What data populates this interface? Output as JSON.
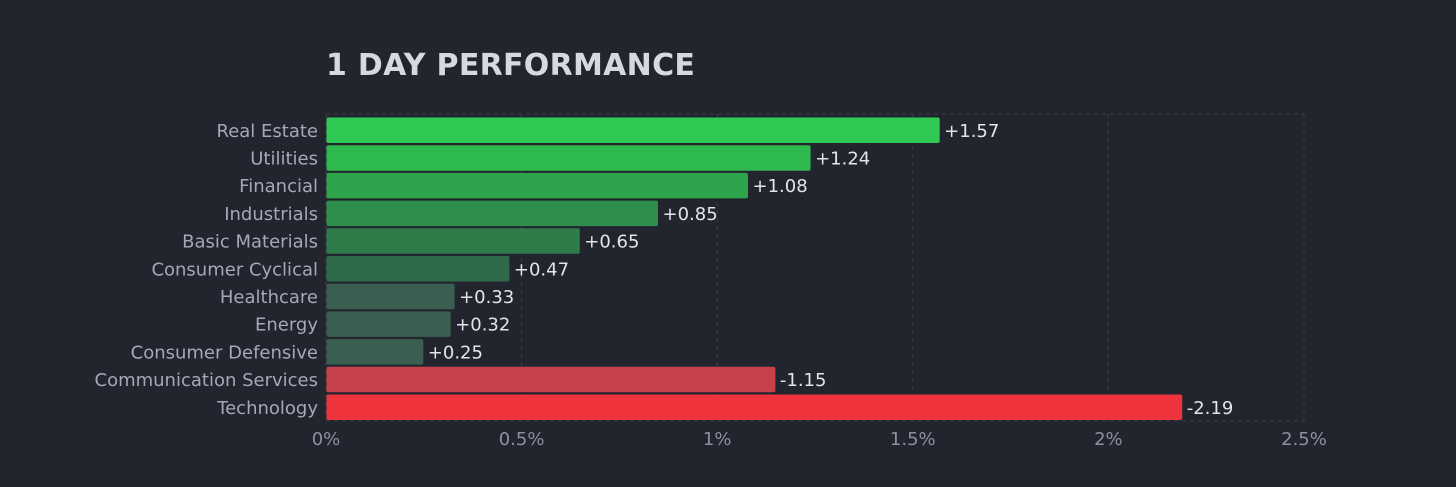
{
  "chart_data": {
    "type": "bar",
    "orientation": "horizontal",
    "title": "1 DAY PERFORMANCE",
    "categories": [
      "Real Estate",
      "Utilities",
      "Financial",
      "Industrials",
      "Basic Materials",
      "Consumer Cyclical",
      "Healthcare",
      "Energy",
      "Consumer Defensive",
      "Communication Services",
      "Technology"
    ],
    "values": [
      1.57,
      1.24,
      1.08,
      0.85,
      0.65,
      0.47,
      0.33,
      0.32,
      0.25,
      -1.15,
      -2.19
    ],
    "value_labels": [
      "+1.57",
      "+1.24",
      "+1.08",
      "+0.85",
      "+0.65",
      "+0.47",
      "+0.33",
      "+0.32",
      "+0.25",
      "-1.15",
      "-2.19"
    ],
    "bar_colors": [
      "#30c953",
      "#2eb94e",
      "#2ea44c",
      "#2e8e4b",
      "#2e7c49",
      "#2f6a4a",
      "#3a5f50",
      "#3a5f50",
      "#3a5f50",
      "#c7414a",
      "#f0343d"
    ],
    "bar_magnitude": "absolute value",
    "xlim": [
      0,
      2.5
    ],
    "xticks": [
      "0%",
      "0.5%",
      "1%",
      "1.5%",
      "2%",
      "2.5%"
    ],
    "xlabel": "",
    "ylabel": "",
    "grid": "vertical dashed",
    "legend": "none",
    "colors": {
      "background": "#22252e",
      "grid": "#3a3e4a",
      "positive": "#30c953",
      "negative": "#f0343d"
    }
  }
}
